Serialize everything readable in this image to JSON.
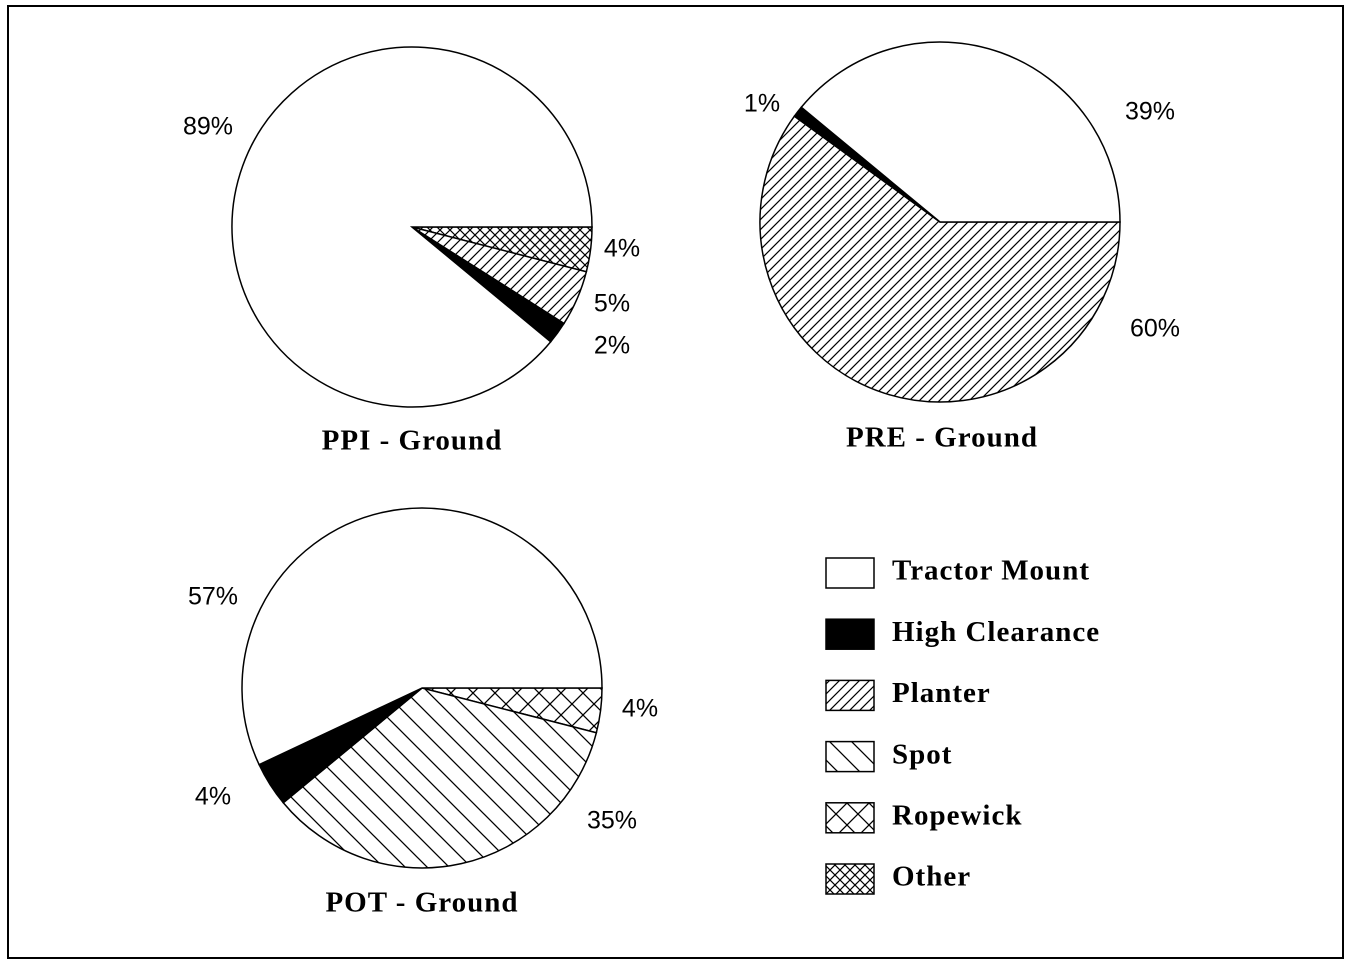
{
  "chart_data": [
    {
      "type": "pie",
      "title": "PPI - Ground",
      "categories": [
        "Other",
        "Planter",
        "High Clearance",
        "Tractor Mount"
      ],
      "values": [
        4,
        5,
        2,
        89
      ],
      "value_labels": [
        "4%",
        "5%",
        "2%",
        "89%"
      ]
    },
    {
      "type": "pie",
      "title": "PRE - Ground",
      "categories": [
        "Planter",
        "High Clearance",
        "Tractor Mount"
      ],
      "values": [
        60,
        1,
        39
      ],
      "value_labels": [
        "60%",
        "1%",
        "39%"
      ]
    },
    {
      "type": "pie",
      "title": "POT - Ground",
      "categories": [
        "Ropewick",
        "Spot",
        "High Clearance",
        "Tractor Mount"
      ],
      "values": [
        4,
        35,
        4,
        57
      ],
      "value_labels": [
        "4%",
        "35%",
        "4%",
        "57%"
      ]
    }
  ],
  "legend": {
    "names": [
      "Tractor Mount",
      "High Clearance",
      "Planter",
      "Spot",
      "Ropewick",
      "Other"
    ],
    "patterns": [
      "none",
      "solid",
      "diag-up",
      "diag-down",
      "cross",
      "fine-cross"
    ]
  }
}
